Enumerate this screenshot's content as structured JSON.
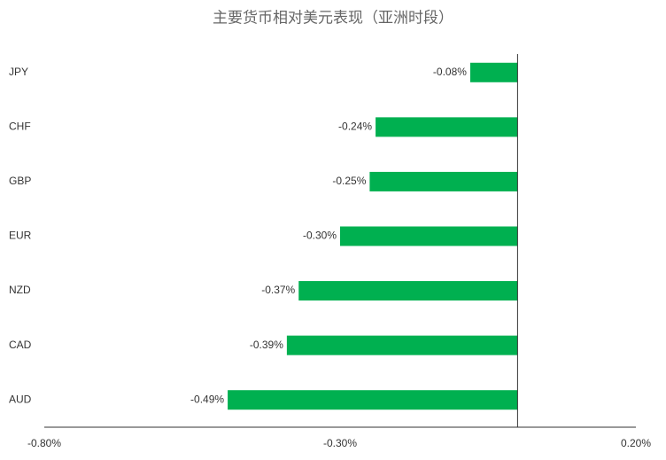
{
  "chart_data": {
    "type": "bar",
    "orientation": "horizontal",
    "title": "主要货币相对美元表现（亚洲时段）",
    "categories": [
      "JPY",
      "CHF",
      "GBP",
      "EUR",
      "NZD",
      "CAD",
      "AUD"
    ],
    "values": [
      -0.08,
      -0.24,
      -0.25,
      -0.3,
      -0.37,
      -0.39,
      -0.49
    ],
    "value_labels": [
      "-0.08%",
      "-0.24%",
      "-0.25%",
      "-0.30%",
      "-0.37%",
      "-0.39%",
      "-0.49%"
    ],
    "color": "#00b050",
    "xlim": [
      -0.8,
      0.2
    ],
    "xticks": [
      {
        "value": -0.8,
        "label": "-0.80%"
      },
      {
        "value": -0.3,
        "label": "-0.30%"
      },
      {
        "value": 0.2,
        "label": "0.20%"
      }
    ],
    "grid": false
  }
}
